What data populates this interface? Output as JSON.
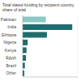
{
  "chart_data": {
    "type": "bar",
    "title": "Total stated funding by recipient country, share of total",
    "orientation": "horizontal",
    "categories": [
      "Pakistan",
      "India",
      "Ethiopia",
      "Nigeria",
      "Kenya",
      "Egypt",
      "Brazil",
      "Other"
    ],
    "values": [
      42,
      90,
      44,
      9,
      7,
      6,
      4,
      3
    ],
    "colors": [
      "#8cc8c4",
      "#1f6d70",
      "#1f6d70",
      "#1f6d70",
      "#1f6d70",
      "#1f6d70",
      "#1f6d70",
      "#1f6d70"
    ],
    "xlim": [
      0,
      100
    ],
    "xticks": [
      0,
      25,
      50,
      75,
      100
    ],
    "grid": true,
    "tick_labels": "y"
  }
}
